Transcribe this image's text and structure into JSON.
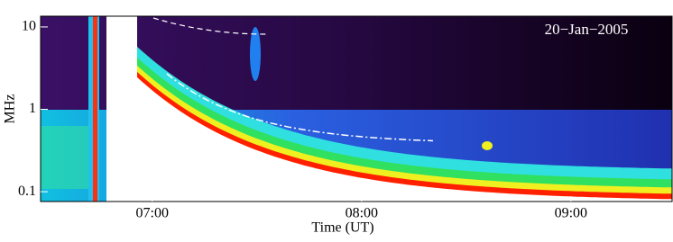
{
  "chart_data": {
    "type": "spectrogram",
    "title": "20−Jan−2005",
    "x_label": "Time (UT)",
    "y_label": "MHz",
    "xlim": [
      388,
      569
    ],
    "xticks": [
      {
        "value": 420,
        "label": "07:00"
      },
      {
        "value": 480,
        "label": "08:00"
      },
      {
        "value": 540,
        "label": "09:00"
      }
    ],
    "ylim": [
      0.076,
      13.5
    ],
    "yticks": [
      0.1,
      1,
      10
    ],
    "y_log": true
  }
}
